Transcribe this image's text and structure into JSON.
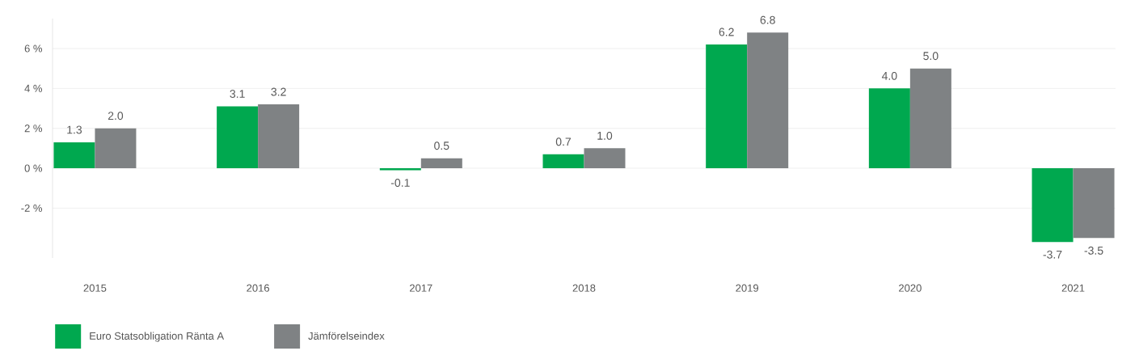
{
  "chart_data": {
    "type": "bar",
    "categories": [
      "2015",
      "2016",
      "2017",
      "2018",
      "2019",
      "2020",
      "2021"
    ],
    "series": [
      {
        "name": "Euro Statsobligation Ränta A",
        "color": "#00a84f",
        "values": [
          1.3,
          3.1,
          -0.1,
          0.7,
          6.2,
          4.0,
          -3.7
        ],
        "value_labels": [
          "1.3",
          "3.1",
          "-0.1",
          "0.7",
          "6.2",
          "4.0",
          "-3.7"
        ]
      },
      {
        "name": "Jämförelseindex",
        "color": "#7f8284",
        "values": [
          2.0,
          3.2,
          0.5,
          1.0,
          6.8,
          5.0,
          -3.5
        ],
        "value_labels": [
          "2.0",
          "3.2",
          "0.5",
          "1.0",
          "6.8",
          "5.0",
          "-3.5"
        ]
      }
    ],
    "ylim": [
      -4.5,
      7.5
    ],
    "yticks": [
      {
        "value": -2,
        "label": "-2 %"
      },
      {
        "value": 0,
        "label": "0 %"
      },
      {
        "value": 2,
        "label": "2 %"
      },
      {
        "value": 4,
        "label": "4 %"
      },
      {
        "value": 6,
        "label": "6 %"
      }
    ],
    "grid": "y",
    "legend": "bottom left"
  }
}
